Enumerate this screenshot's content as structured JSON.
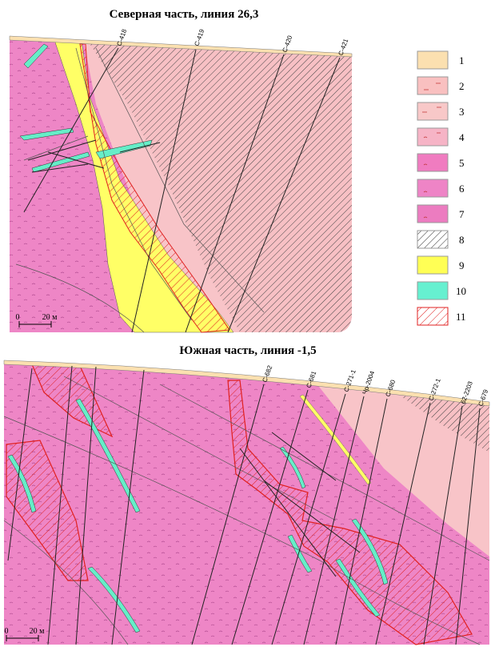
{
  "north": {
    "title": "Северная часть, линия 26,3",
    "boreholes": [
      "С-418",
      "С-419",
      "С-420",
      "С-421"
    ],
    "scale": {
      "zero": "0",
      "length": "20 м"
    }
  },
  "legend": {
    "items": [
      "1",
      "2",
      "3",
      "4",
      "5",
      "6",
      "7",
      "8",
      "9",
      "10",
      "11"
    ]
  },
  "south": {
    "title": "Южная часть, линия -1,5",
    "boreholes": [
      "С-682",
      "С-681",
      "С-271-1",
      "Чр-2004",
      "С-680",
      "С-272-1",
      "62-2203",
      "С-679"
    ],
    "scale": {
      "zero": "0",
      "length": "20 м"
    }
  }
}
